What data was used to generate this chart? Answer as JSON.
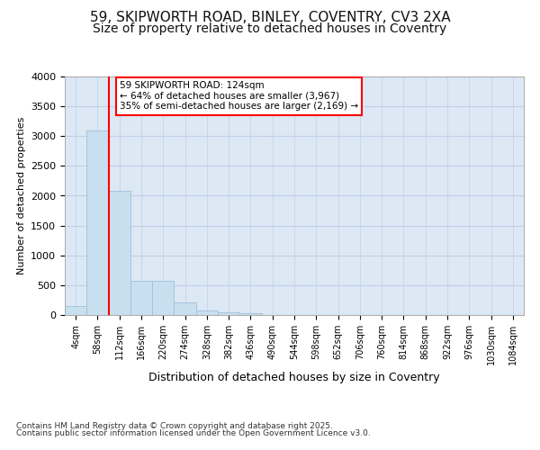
{
  "title_line1": "59, SKIPWORTH ROAD, BINLEY, COVENTRY, CV3 2XA",
  "title_line2": "Size of property relative to detached houses in Coventry",
  "xlabel": "Distribution of detached houses by size in Coventry",
  "ylabel": "Number of detached properties",
  "footnote1": "Contains HM Land Registry data © Crown copyright and database right 2025.",
  "footnote2": "Contains public sector information licensed under the Open Government Licence v3.0.",
  "annotation_line1": "59 SKIPWORTH ROAD: 124sqm",
  "annotation_line2": "← 64% of detached houses are smaller (3,967)",
  "annotation_line3": "35% of semi-detached houses are larger (2,169) →",
  "bar_labels": [
    "4sqm",
    "58sqm",
    "112sqm",
    "166sqm",
    "220sqm",
    "274sqm",
    "328sqm",
    "382sqm",
    "436sqm",
    "490sqm",
    "544sqm",
    "598sqm",
    "652sqm",
    "706sqm",
    "760sqm",
    "814sqm",
    "868sqm",
    "922sqm",
    "976sqm",
    "1030sqm",
    "1084sqm"
  ],
  "bar_values": [
    150,
    3100,
    2080,
    580,
    580,
    210,
    70,
    40,
    30,
    0,
    0,
    0,
    0,
    0,
    0,
    0,
    0,
    0,
    0,
    0,
    0
  ],
  "bar_color": "#c8dff0",
  "bar_edge_color": "#a0c0d8",
  "redline_x": 1.5,
  "ylim": [
    0,
    4000
  ],
  "yticks": [
    0,
    500,
    1000,
    1500,
    2000,
    2500,
    3000,
    3500,
    4000
  ],
  "bg_color": "#ffffff",
  "plot_bg_color": "#dde8f5",
  "grid_color": "#c0cfe8",
  "title_fontsize": 11,
  "subtitle_fontsize": 10
}
